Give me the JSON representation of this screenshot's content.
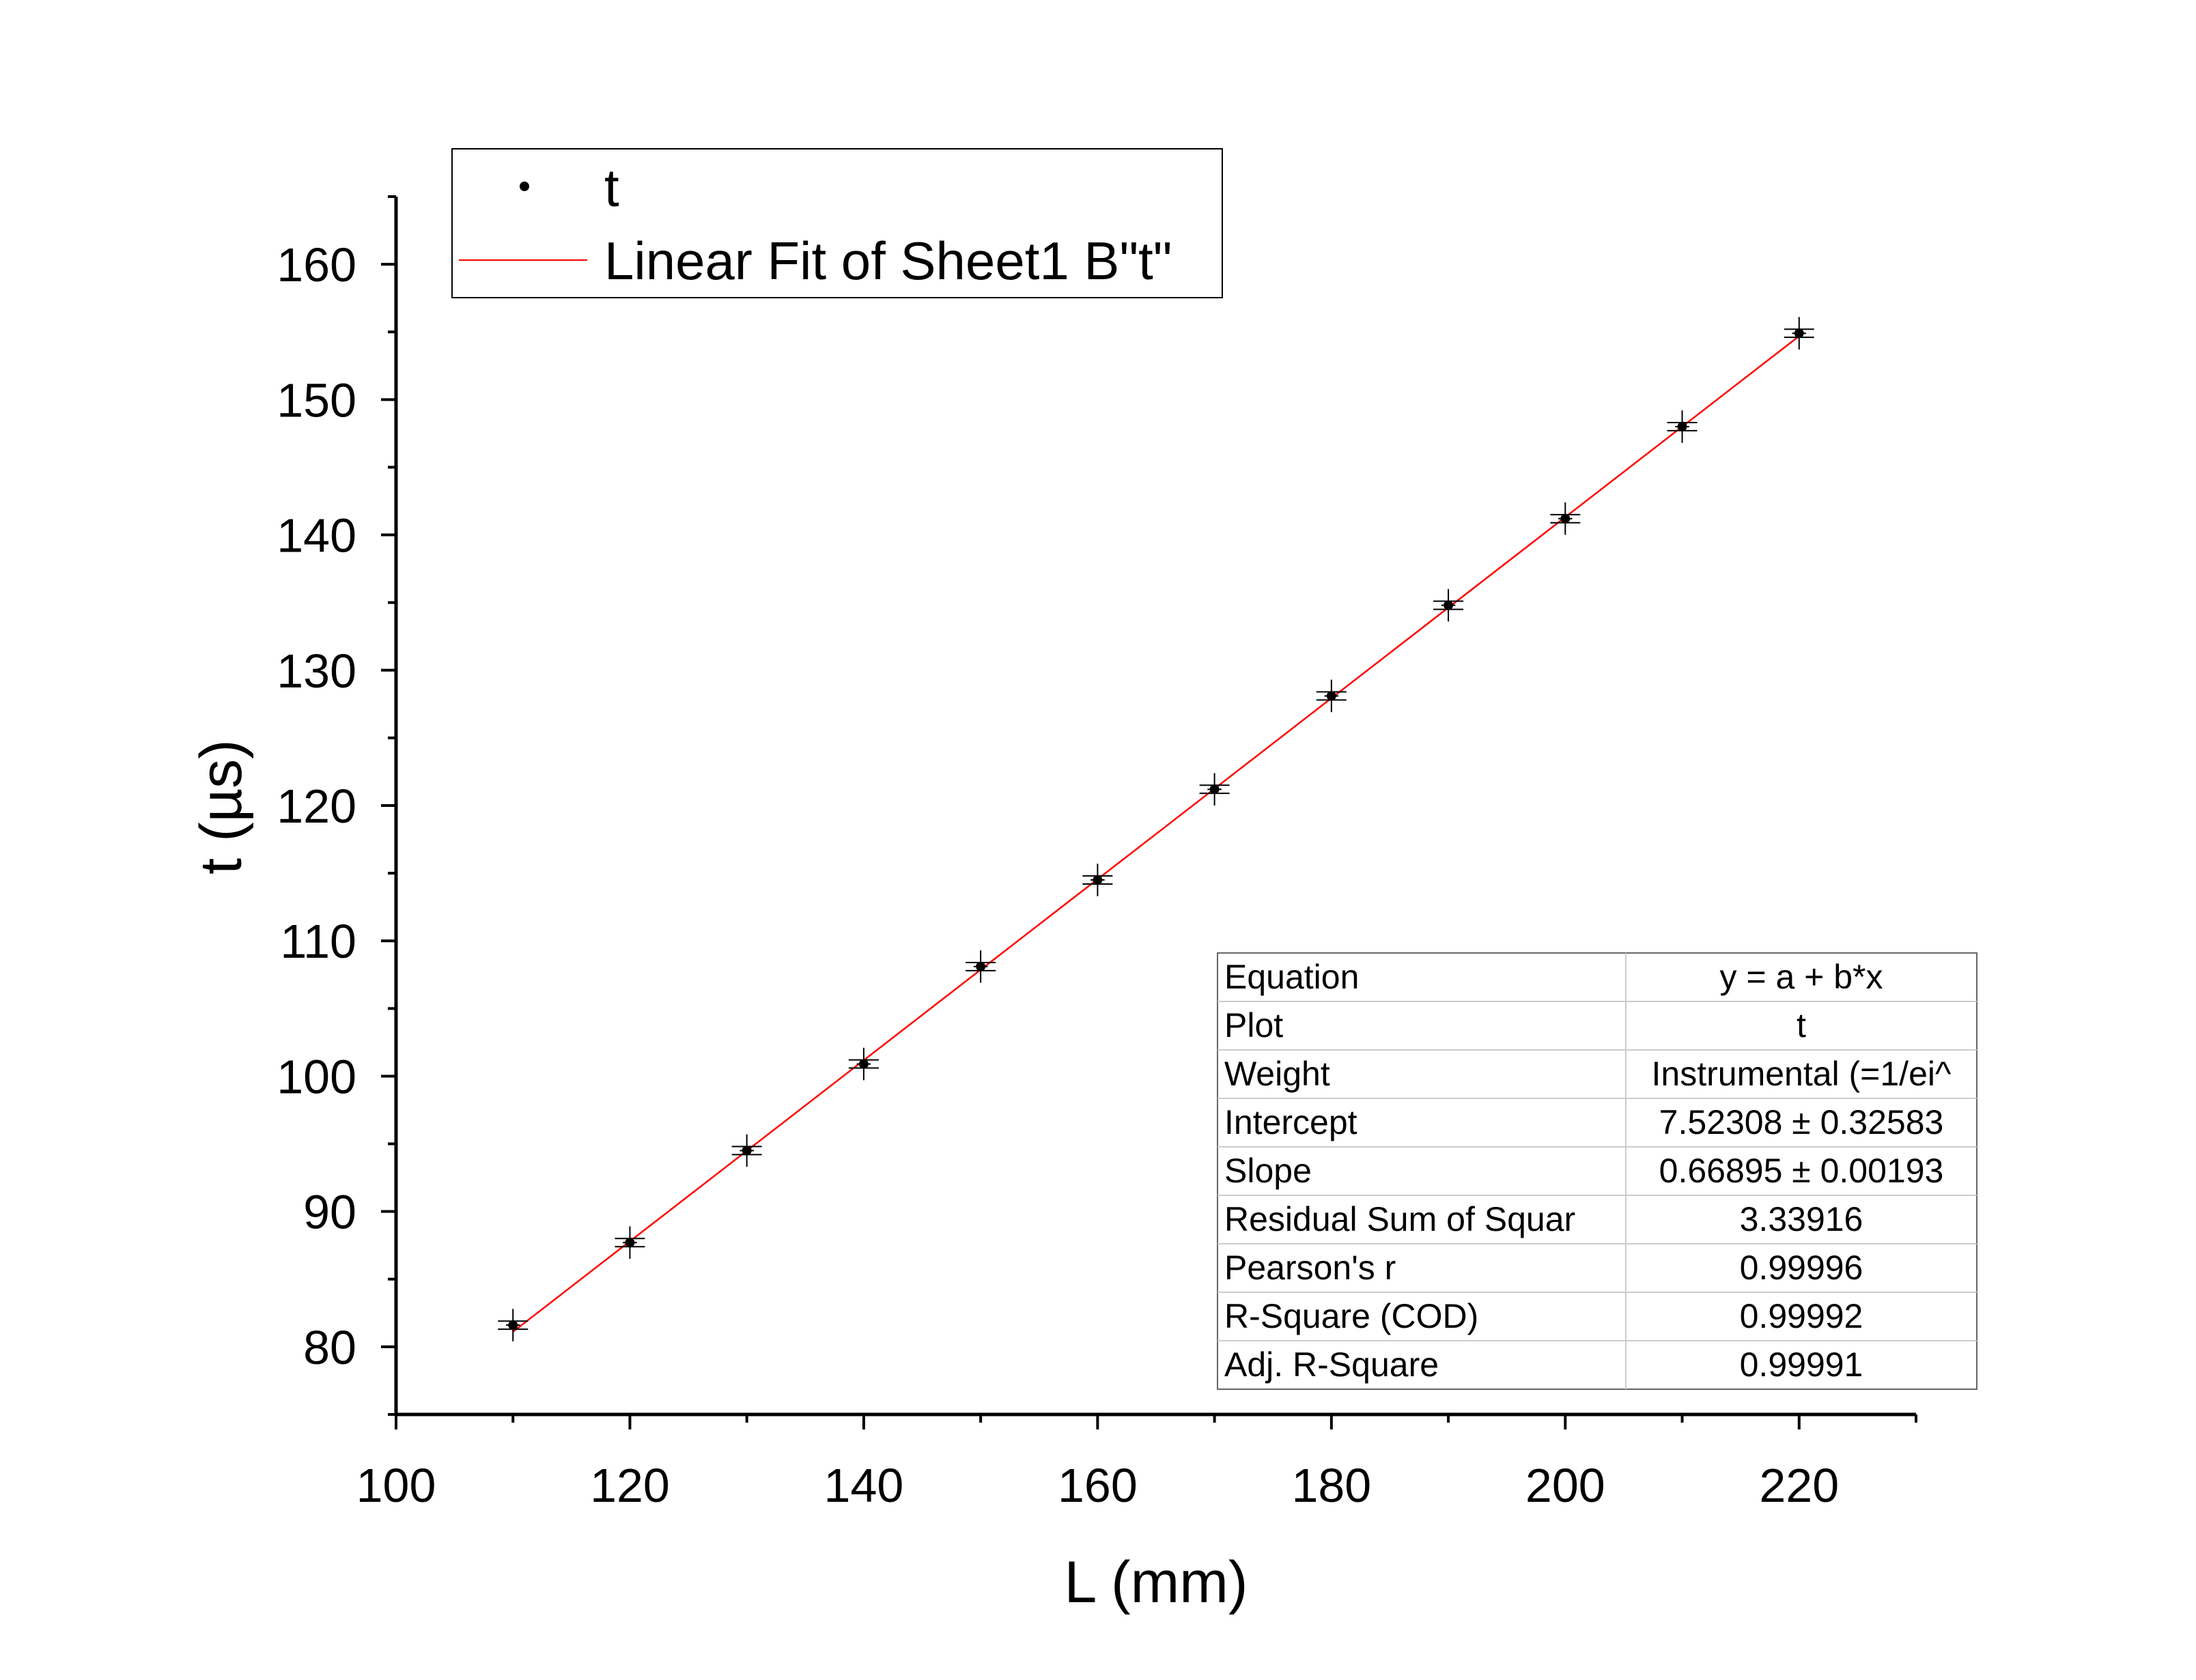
{
  "chart_data": {
    "type": "scatter",
    "xlabel": "L (mm)",
    "ylabel": "t (µs)",
    "xlim": [
      100,
      230
    ],
    "ylim": [
      75,
      165
    ],
    "xticks": [
      "100",
      "120",
      "140",
      "160",
      "180",
      "200",
      "220"
    ],
    "yticks": [
      "80",
      "90",
      "100",
      "110",
      "120",
      "130",
      "140",
      "150",
      "160"
    ],
    "series": [
      {
        "name": "t",
        "marker": "dot",
        "color": "#000000",
        "x": [
          110,
          120,
          130,
          140,
          150,
          160,
          170,
          180,
          190,
          200,
          210,
          220
        ],
        "y": [
          81.6,
          87.7,
          94.5,
          100.9,
          108.1,
          114.5,
          121.2,
          128.1,
          134.8,
          141.2,
          148.0,
          154.9
        ],
        "x_error": [
          0.6,
          0.6,
          0.6,
          0.6,
          0.6,
          0.6,
          0.6,
          0.6,
          0.6,
          0.6,
          0.6,
          0.6
        ],
        "y_error": [
          1.2,
          1.2,
          1.2,
          1.2,
          1.2,
          1.2,
          1.2,
          1.2,
          1.2,
          1.2,
          1.2,
          1.2
        ]
      },
      {
        "name": "Linear Fit of Sheet1 B\"t\"",
        "type": "line",
        "color": "#ff0000",
        "intercept": 7.52308,
        "slope": 0.66895,
        "x_range": [
          110,
          220
        ]
      }
    ],
    "legend": {
      "placement": "top-left",
      "entries": [
        "t",
        "Linear Fit of Sheet1 B\"t\""
      ]
    },
    "fit_table": {
      "placement": "bottom-right",
      "rows": [
        [
          "Equation",
          "y = a + b*x"
        ],
        [
          "Plot",
          "t"
        ],
        [
          "Weight",
          "Instrumental (=1/ei^"
        ],
        [
          "Intercept",
          "7.52308 ± 0.32583"
        ],
        [
          "Slope",
          "0.66895 ± 0.00193"
        ],
        [
          "Residual Sum of Squar",
          "3.33916"
        ],
        [
          "Pearson's r",
          "0.99996"
        ],
        [
          "R-Square (COD)",
          "0.99992"
        ],
        [
          "Adj. R-Square",
          "0.99991"
        ]
      ]
    }
  }
}
